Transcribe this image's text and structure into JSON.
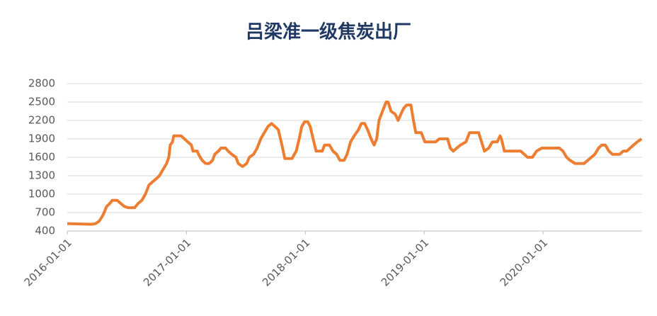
{
  "chart_data": {
    "type": "line",
    "title": "吕梁准一级焦炭出厂",
    "x": [
      "2016-01-01",
      "2016-03-17",
      "2016-03-28",
      "2016-04-08",
      "2016-04-19",
      "2016-05-01",
      "2016-05-11",
      "2016-05-18",
      "2016-06-02",
      "2016-06-13",
      "2016-06-24",
      "2016-07-05",
      "2016-07-26",
      "2016-08-06",
      "2016-08-17",
      "2016-08-28",
      "2016-09-08",
      "2016-09-19",
      "2016-09-30",
      "2016-10-10",
      "2016-10-21",
      "2016-11-01",
      "2016-11-08",
      "2016-11-12",
      "2016-11-19",
      "2016-11-23",
      "2016-12-15",
      "2016-12-26",
      "2017-01-05",
      "2017-01-16",
      "2017-01-21",
      "2017-02-03",
      "2017-02-07",
      "2017-02-18",
      "2017-03-01",
      "2017-03-12",
      "2017-03-22",
      "2017-03-29",
      "2017-04-09",
      "2017-04-17",
      "2017-05-01",
      "2017-05-09",
      "2017-05-20",
      "2017-06-02",
      "2017-06-09",
      "2017-06-22",
      "2017-07-05",
      "2017-07-13",
      "2017-07-26",
      "2017-08-06",
      "2017-08-17",
      "2017-08-28",
      "2017-09-08",
      "2017-09-19",
      "2017-09-30",
      "2017-10-10",
      "2017-10-21",
      "2017-10-30",
      "2017-11-21",
      "2017-12-04",
      "2017-12-13",
      "2017-12-21",
      "2017-12-30",
      "2018-01-08",
      "2018-01-16",
      "2018-01-25",
      "2018-02-03",
      "2018-02-22",
      "2018-03-01",
      "2018-03-16",
      "2018-03-27",
      "2018-04-07",
      "2018-04-17",
      "2018-04-30",
      "2018-05-09",
      "2018-05-20",
      "2018-05-31",
      "2018-06-13",
      "2018-06-22",
      "2018-07-02",
      "2018-07-11",
      "2018-07-22",
      "2018-07-31",
      "2018-08-08",
      "2018-08-15",
      "2018-08-26",
      "2018-09-06",
      "2018-09-12",
      "2018-09-21",
      "2018-10-04",
      "2018-10-13",
      "2018-10-21",
      "2018-10-30",
      "2018-11-08",
      "2018-11-21",
      "2018-11-29",
      "2018-12-06",
      "2018-12-23",
      "2019-01-03",
      "2019-02-05",
      "2019-02-16",
      "2019-03-14",
      "2019-03-22",
      "2019-03-31",
      "2019-04-11",
      "2019-04-22",
      "2019-05-09",
      "2019-05-20",
      "2019-06-17",
      "2019-06-26",
      "2019-07-05",
      "2019-07-18",
      "2019-07-29",
      "2019-08-13",
      "2019-08-22",
      "2019-08-26",
      "2019-09-04",
      "2019-10-24",
      "2019-11-04",
      "2019-11-14",
      "2019-11-29",
      "2019-12-12",
      "2019-12-28",
      "2020-02-20",
      "2020-03-02",
      "2020-03-13",
      "2020-03-24",
      "2020-04-08",
      "2020-05-06",
      "2020-05-17",
      "2020-06-08",
      "2020-06-19",
      "2020-06-29",
      "2020-07-10",
      "2020-07-21",
      "2020-08-01",
      "2020-08-23",
      "2020-09-03",
      "2020-09-14",
      "2020-09-24",
      "2020-10-05",
      "2020-10-16",
      "2020-10-29"
    ],
    "series": [
      {
        "color": "#ed7d31",
        "values": [
          520,
          510,
          520,
          560,
          650,
          800,
          850,
          900,
          900,
          850,
          800,
          780,
          780,
          850,
          900,
          1000,
          1150,
          1200,
          1250,
          1300,
          1400,
          1500,
          1600,
          1800,
          1850,
          1950,
          1950,
          1900,
          1850,
          1800,
          1700,
          1700,
          1650,
          1550,
          1500,
          1500,
          1550,
          1650,
          1700,
          1750,
          1750,
          1700,
          1650,
          1600,
          1500,
          1450,
          1500,
          1600,
          1650,
          1750,
          1900,
          2000,
          2100,
          2150,
          2100,
          2050,
          1800,
          1580,
          1580,
          1700,
          1900,
          2100,
          2180,
          2180,
          2100,
          1900,
          1700,
          1700,
          1800,
          1800,
          1700,
          1650,
          1550,
          1550,
          1650,
          1850,
          1950,
          2050,
          2150,
          2150,
          2050,
          1900,
          1800,
          1900,
          2200,
          2350,
          2500,
          2500,
          2350,
          2300,
          2200,
          2300,
          2400,
          2450,
          2450,
          2200,
          2000,
          2000,
          1850,
          1850,
          1900,
          1900,
          1750,
          1700,
          1750,
          1800,
          1850,
          2000,
          2000,
          1850,
          1700,
          1750,
          1850,
          1850,
          1950,
          1900,
          1700,
          1700,
          1650,
          1600,
          1600,
          1700,
          1750,
          1750,
          1700,
          1600,
          1550,
          1500,
          1500,
          1550,
          1650,
          1750,
          1800,
          1800,
          1700,
          1650,
          1650,
          1700,
          1700,
          1750,
          1800,
          1850,
          1900
        ]
      }
    ],
    "xlim": [
      "2016-01-01",
      "2020-10-31"
    ],
    "xticks": [
      "2016-01-01",
      "2017-01-01",
      "2018-01-01",
      "2019-01-01",
      "2020-01-01"
    ],
    "ylim": [
      400,
      2800
    ],
    "yticks": [
      400,
      700,
      1000,
      1300,
      1600,
      1900,
      2200,
      2500,
      2800
    ],
    "grid": true
  }
}
